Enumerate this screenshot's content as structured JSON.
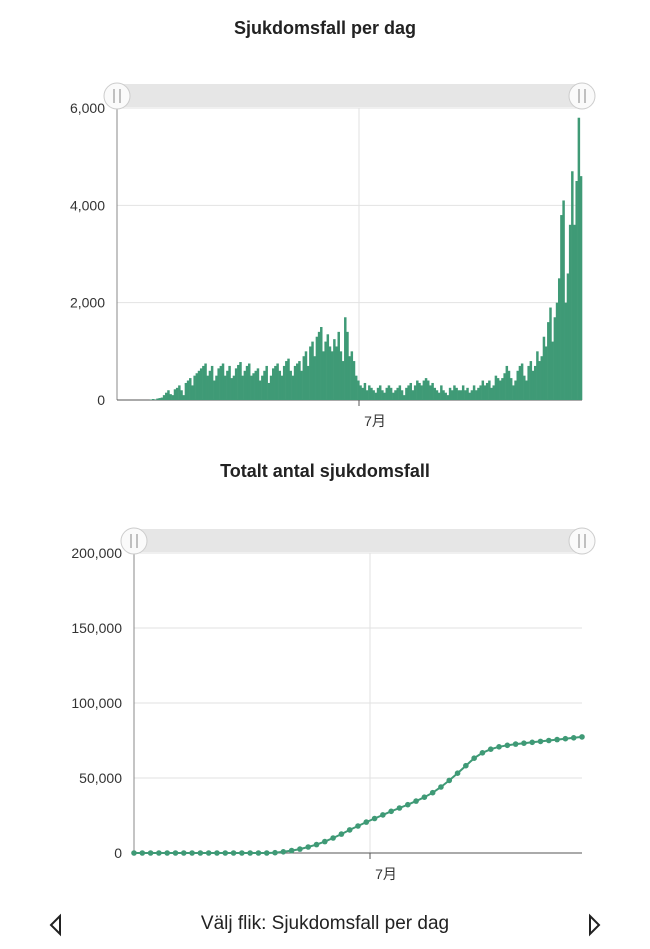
{
  "colors": {
    "series": "#3f9a76",
    "grid": "#e2e2e2",
    "axis": "#888888",
    "slider": "#e6e6e6"
  },
  "footer": {
    "label": "Välj flik: Sjukdomsfall per dag",
    "prev_icon": "triangle-left-icon",
    "next_icon": "triangle-right-icon"
  },
  "chart_data": [
    {
      "type": "bar",
      "title": "Sjukdomsfall per dag",
      "xlabel": "",
      "ylabel": "",
      "ylim": [
        0,
        6000
      ],
      "y_ticks": [
        "0",
        "2,000",
        "4,000",
        "6,000"
      ],
      "x_tick_label": "7月",
      "grid": true,
      "values": [
        0,
        0,
        0,
        0,
        0,
        0,
        0,
        0,
        0,
        0,
        0,
        0,
        0,
        0,
        0,
        10,
        20,
        5,
        30,
        40,
        50,
        100,
        150,
        200,
        120,
        100,
        220,
        250,
        300,
        200,
        100,
        350,
        400,
        450,
        300,
        500,
        550,
        600,
        650,
        700,
        750,
        500,
        600,
        700,
        400,
        500,
        650,
        700,
        750,
        500,
        600,
        700,
        450,
        500,
        650,
        720,
        780,
        500,
        600,
        700,
        750,
        500,
        550,
        600,
        650,
        400,
        500,
        600,
        700,
        350,
        500,
        650,
        700,
        750,
        600,
        500,
        700,
        800,
        850,
        600,
        500,
        700,
        750,
        800,
        600,
        900,
        1000,
        700,
        1100,
        1200,
        900,
        1300,
        1400,
        1500,
        1000,
        1200,
        1350,
        1100,
        1000,
        1250,
        1100,
        1400,
        1000,
        800,
        1700,
        1400,
        900,
        1000,
        800,
        500,
        400,
        300,
        250,
        350,
        200,
        300,
        250,
        200,
        150,
        250,
        300,
        200,
        150,
        250,
        300,
        250,
        150,
        200,
        250,
        300,
        200,
        100,
        250,
        300,
        350,
        200,
        300,
        400,
        350,
        300,
        400,
        450,
        400,
        300,
        350,
        250,
        200,
        150,
        300,
        200,
        150,
        100,
        250,
        200,
        300,
        250,
        200,
        200,
        300,
        200,
        250,
        150,
        200,
        300,
        200,
        250,
        300,
        400,
        300,
        350,
        400,
        250,
        300,
        500,
        450,
        400,
        450,
        550,
        700,
        600,
        450,
        300,
        400,
        600,
        700,
        750,
        500,
        400,
        700,
        800,
        600,
        700,
        1000,
        800,
        900,
        1300,
        1100,
        1600,
        1900,
        1200,
        1700,
        2000,
        2500,
        3800,
        4100,
        2000,
        2600,
        3600,
        4700,
        3600,
        4500,
        5800,
        4600
      ]
    },
    {
      "type": "scatter",
      "title": "Totalt antal sjukdomsfall",
      "xlabel": "",
      "ylabel": "",
      "ylim": [
        0,
        200000
      ],
      "y_ticks": [
        "0",
        "50,000",
        "100,000",
        "150,000",
        "200,000"
      ],
      "x_tick_label": "7月",
      "grid": true,
      "x": [
        0,
        4,
        8,
        12,
        16,
        20,
        24,
        28,
        32,
        36,
        40,
        44,
        48,
        52,
        56,
        60,
        64,
        68,
        72,
        76,
        80,
        84,
        88,
        92,
        96,
        100,
        104,
        108,
        112,
        116,
        120,
        124,
        128,
        132,
        136,
        140,
        144,
        148,
        152,
        156,
        160,
        164,
        168,
        172,
        176,
        180,
        184,
        188,
        192,
        196,
        200,
        204,
        208,
        212,
        216
      ],
      "values": [
        0,
        0,
        0,
        0,
        0,
        0,
        0,
        0,
        0,
        0,
        0,
        0,
        0,
        0,
        0,
        0,
        0,
        200,
        800,
        1600,
        2600,
        4000,
        5600,
        7600,
        10000,
        12600,
        15400,
        18000,
        20600,
        23000,
        25400,
        27800,
        30000,
        32200,
        34600,
        37200,
        40200,
        44000,
        48400,
        53200,
        58200,
        63200,
        66800,
        69200,
        70800,
        71800,
        72600,
        73200,
        73800,
        74400,
        75000,
        75600,
        76200,
        76800,
        77400
      ]
    }
  ]
}
